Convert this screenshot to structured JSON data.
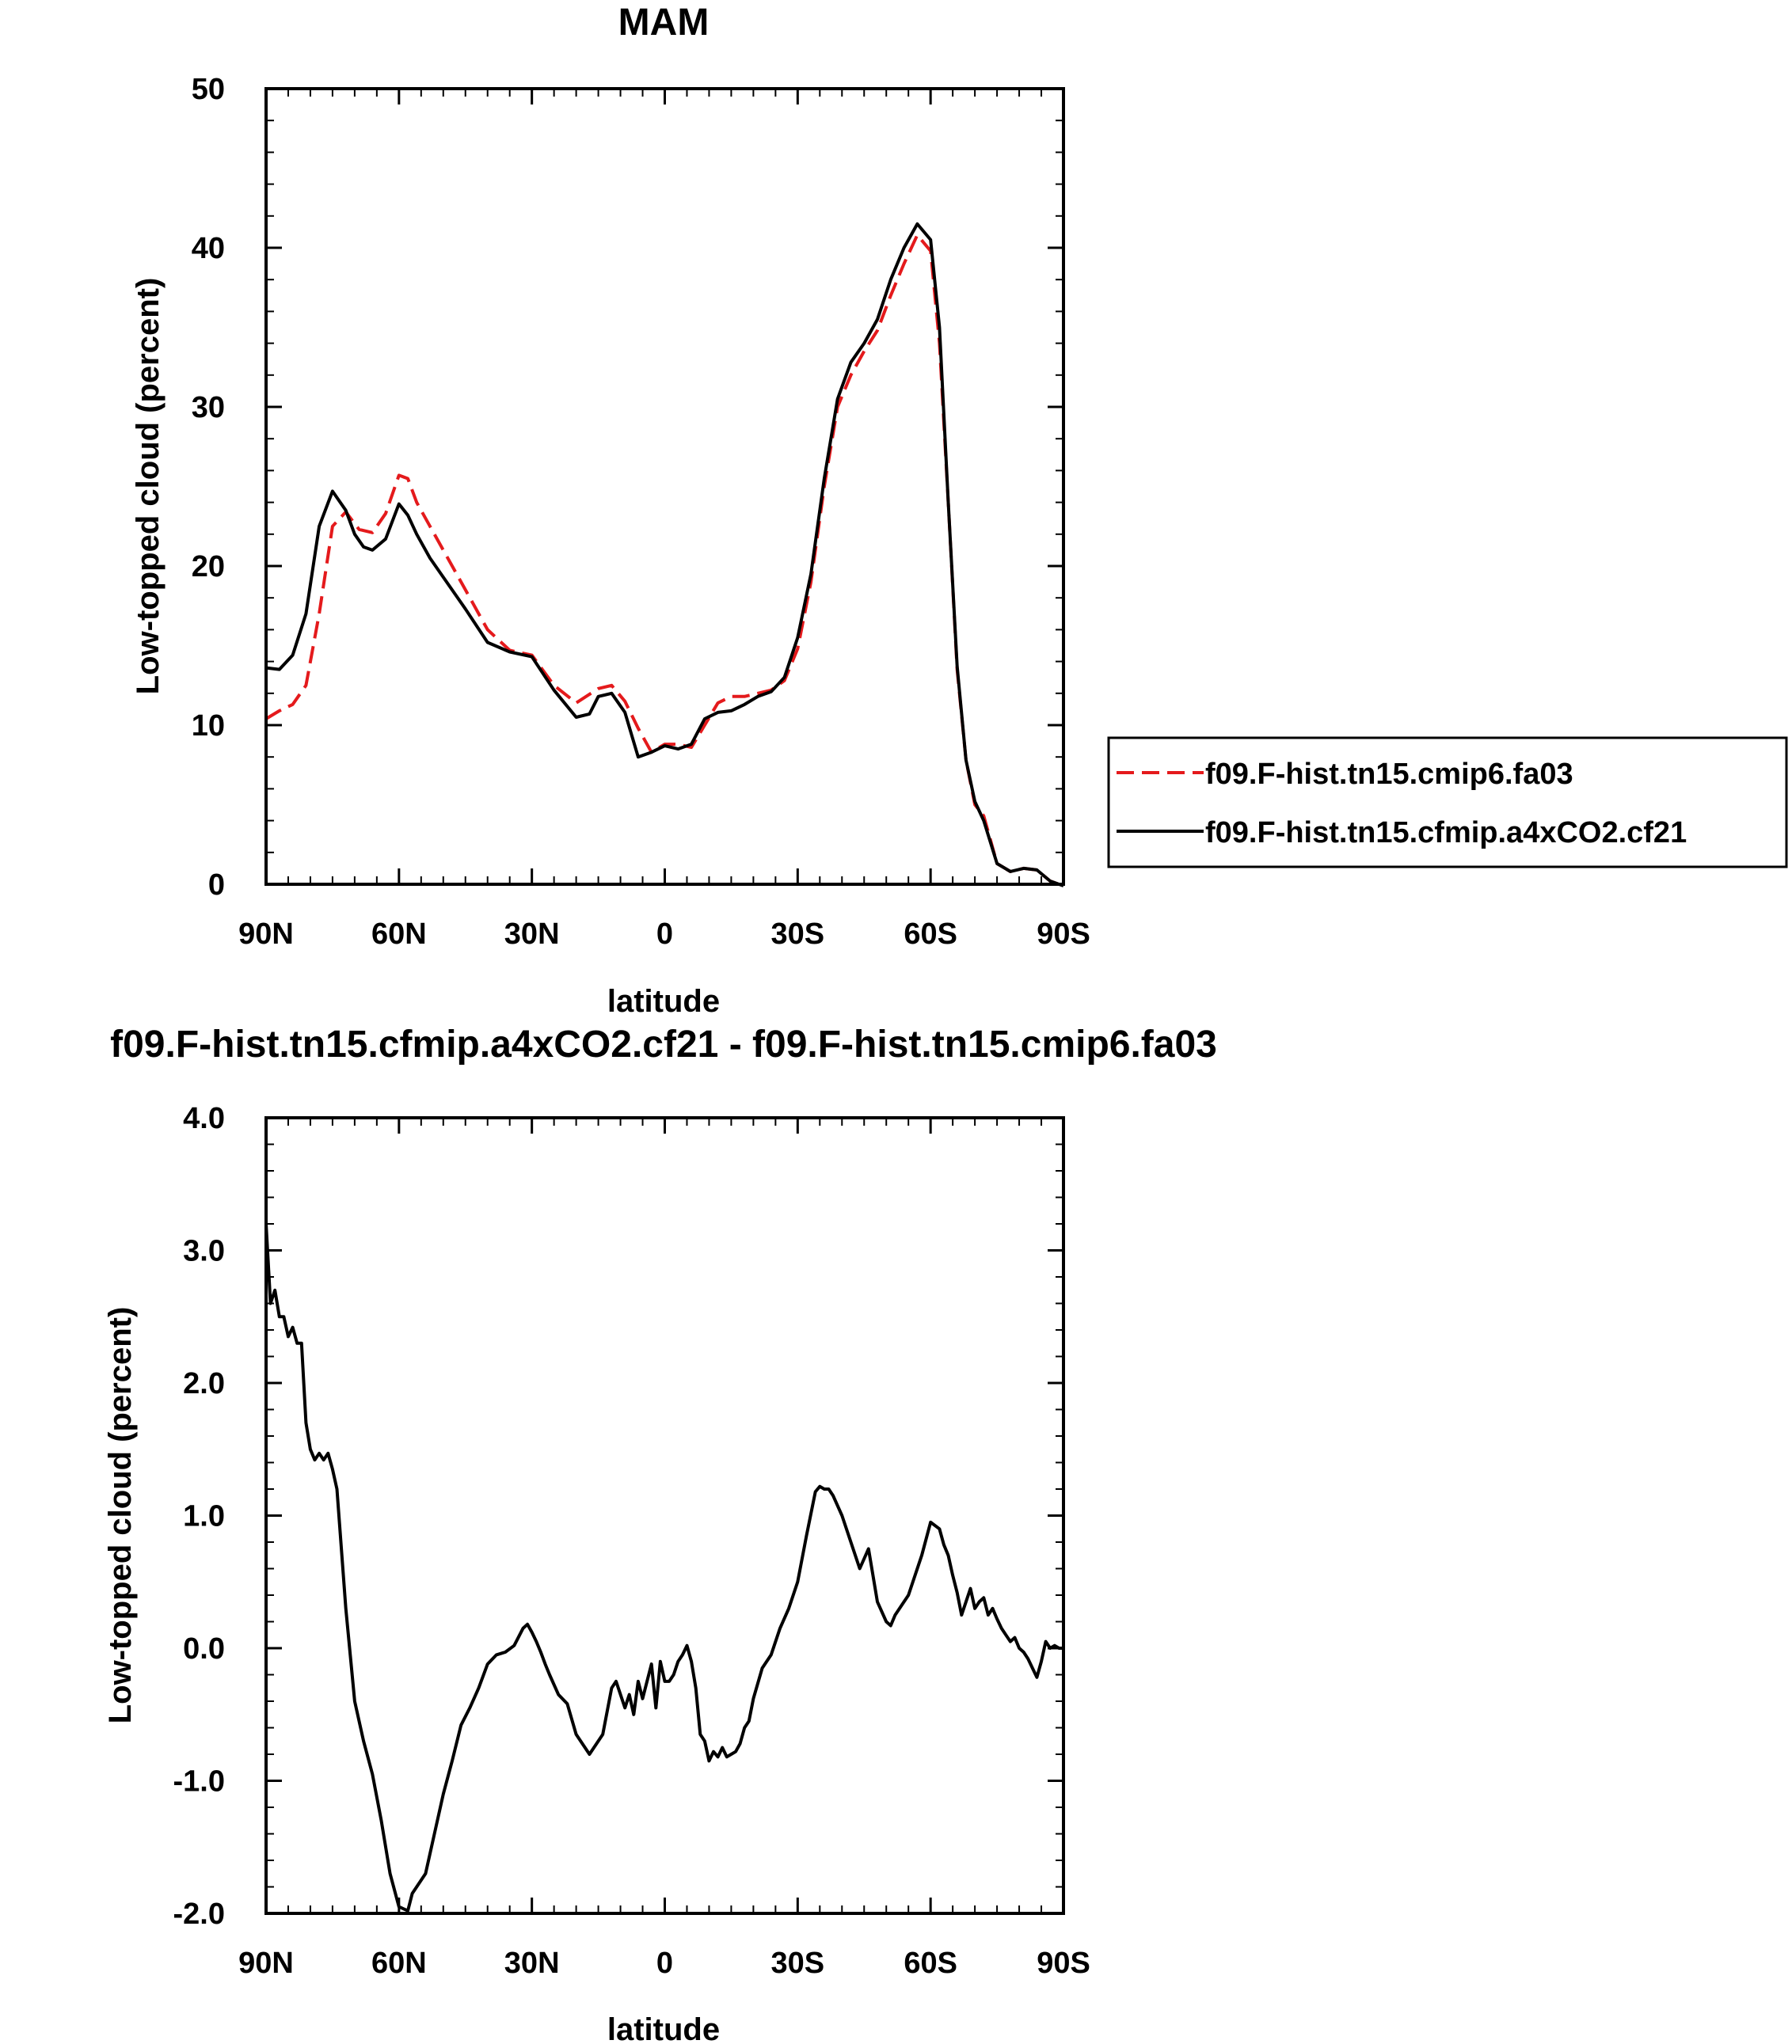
{
  "chart_data": [
    {
      "type": "line",
      "title": "MAM",
      "xlabel": "latitude",
      "ylabel": "Low-topped cloud (percent)",
      "xlim": [
        90,
        -90
      ],
      "ylim": [
        0,
        50
      ],
      "x_ticks": [
        90,
        60,
        30,
        0,
        -30,
        -60,
        -90
      ],
      "x_tick_labels": [
        "90N",
        "60N",
        "30N",
        "0",
        "30S",
        "60S",
        "90S"
      ],
      "y_ticks": [
        0,
        10,
        20,
        30,
        40,
        50
      ],
      "y_tick_labels": [
        "0",
        "10",
        "20",
        "30",
        "40",
        "50"
      ],
      "grid": false,
      "legend_placement": "outside-right",
      "series": [
        {
          "name": "f09.F-hist.tn15.cmip6.fa03",
          "color": "#e41a1c",
          "dash": "dashed",
          "x": [
            90,
            87,
            84,
            81,
            78,
            75,
            72,
            69,
            66,
            63,
            60,
            58,
            56,
            53,
            50,
            45,
            40,
            35,
            30,
            25,
            20,
            15,
            12,
            9,
            6,
            3,
            0,
            -3,
            -6,
            -9,
            -12,
            -15,
            -18,
            -21,
            -24,
            -27,
            -30,
            -33,
            -36,
            -39,
            -42,
            -45,
            -48,
            -51,
            -54,
            -57,
            -60,
            -62,
            -64,
            -66,
            -68,
            -70,
            -72,
            -75,
            -78,
            -81,
            -84,
            -87,
            -90
          ],
          "y": [
            10.4,
            10.9,
            11.3,
            12.5,
            17,
            22.5,
            23.4,
            22.3,
            22.1,
            23.3,
            25.7,
            25.5,
            24,
            22.5,
            21,
            18.5,
            16,
            14.7,
            14.4,
            12.5,
            11.4,
            12.3,
            12.5,
            11.5,
            9.8,
            8.3,
            8.8,
            8.8,
            8.6,
            10,
            11.4,
            11.8,
            11.8,
            12,
            12.2,
            12.8,
            14.8,
            19,
            25,
            30,
            32,
            33.5,
            34.8,
            37,
            39,
            40.8,
            39.8,
            34,
            24,
            13.5,
            7.8,
            5,
            4.3,
            1.3,
            0.8,
            1,
            0.9,
            0.2,
            -0.1
          ]
        },
        {
          "name": "f09.F-hist.tn15.cfmip.a4xCO2.cf21",
          "color": "#000000",
          "dash": "solid",
          "x": [
            90,
            87,
            84,
            81,
            78,
            75,
            72,
            70,
            68,
            66,
            63,
            60,
            58,
            56,
            53,
            50,
            45,
            40,
            35,
            30,
            25,
            20,
            17,
            15,
            12,
            9,
            6,
            3,
            0,
            -3,
            -6,
            -9,
            -12,
            -15,
            -18,
            -21,
            -24,
            -27,
            -30,
            -33,
            -36,
            -39,
            -42,
            -45,
            -48,
            -51,
            -54,
            -57,
            -60,
            -62,
            -64,
            -66,
            -68,
            -70,
            -72,
            -75,
            -78,
            -81,
            -84,
            -87,
            -90
          ],
          "y": [
            13.6,
            13.5,
            14.4,
            17,
            22.5,
            24.7,
            23.5,
            22,
            21.2,
            21,
            21.7,
            23.9,
            23.2,
            22,
            20.5,
            19.3,
            17.3,
            15.2,
            14.6,
            14.3,
            12.2,
            10.5,
            10.7,
            11.8,
            12,
            10.8,
            8,
            8.3,
            8.7,
            8.5,
            8.8,
            10.4,
            10.8,
            10.9,
            11.3,
            11.8,
            12.1,
            13,
            15.5,
            19.5,
            25.5,
            30.5,
            32.8,
            34,
            35.5,
            38,
            40,
            41.5,
            40.5,
            35,
            24,
            13.7,
            7.8,
            5.2,
            4,
            1.3,
            0.8,
            1,
            0.9,
            0.2,
            -0.1
          ]
        }
      ]
    },
    {
      "type": "line",
      "title": "f09.F-hist.tn15.cfmip.a4xCO2.cf21 - f09.F-hist.tn15.cmip6.fa03",
      "xlabel": "latitude",
      "ylabel": "Low-topped cloud (percent)",
      "xlim": [
        90,
        -90
      ],
      "ylim": [
        -2.0,
        4.0
      ],
      "x_ticks": [
        90,
        60,
        30,
        0,
        -30,
        -60,
        -90
      ],
      "x_tick_labels": [
        "90N",
        "60N",
        "30N",
        "0",
        "30S",
        "60S",
        "90S"
      ],
      "y_ticks": [
        -2,
        -1,
        0,
        1,
        2,
        3,
        4
      ],
      "y_tick_labels": [
        "-2.0",
        "-1.0",
        "0.0",
        "1.0",
        "2.0",
        "3.0",
        "4.0"
      ],
      "grid": false,
      "series": [
        {
          "color": "#000000",
          "dash": "solid",
          "x": [
            90,
            89,
            88,
            87,
            86,
            85,
            84,
            83,
            82,
            81,
            80,
            79,
            78,
            77,
            76,
            75,
            74,
            72,
            70,
            68,
            66,
            64,
            62,
            60,
            58,
            57,
            56,
            55,
            54,
            52,
            50,
            48,
            46,
            44,
            42,
            40,
            38,
            36,
            34,
            32,
            31,
            30,
            29,
            28,
            27,
            26,
            24,
            22,
            20,
            18,
            17,
            16,
            14,
            12,
            11,
            10,
            9,
            8,
            7,
            6,
            5,
            4,
            3,
            2,
            1,
            0,
            -1,
            -2,
            -3,
            -4,
            -5,
            -6,
            -7,
            -8,
            -9,
            -10,
            -11,
            -12,
            -13,
            -14,
            -15,
            -16,
            -17,
            -18,
            -19,
            -20,
            -22,
            -24,
            -26,
            -28,
            -30,
            -32,
            -34,
            -35,
            -36,
            -37,
            -38,
            -40,
            -42,
            -44,
            -46,
            -48,
            -50,
            -51,
            -52,
            -53,
            -54,
            -55,
            -56,
            -58,
            -60,
            -62,
            -63,
            -64,
            -65,
            -66,
            -67,
            -68,
            -69,
            -70,
            -71,
            -72,
            -73,
            -74,
            -75,
            -76,
            -77,
            -78,
            -79,
            -80,
            -81,
            -82,
            -83,
            -84,
            -85,
            -86,
            -87,
            -88,
            -89,
            -90
          ],
          "y": [
            3.2,
            2.6,
            2.7,
            2.5,
            2.5,
            2.35,
            2.42,
            2.3,
            2.3,
            1.7,
            1.5,
            1.42,
            1.47,
            1.42,
            1.47,
            1.35,
            1.2,
            0.3,
            -0.4,
            -0.7,
            -0.95,
            -1.3,
            -1.7,
            -1.95,
            -1.98,
            -1.85,
            -1.8,
            -1.75,
            -1.7,
            -1.4,
            -1.1,
            -0.85,
            -0.58,
            -0.45,
            -0.3,
            -0.12,
            -0.05,
            -0.03,
            0.02,
            0.15,
            0.18,
            0.12,
            0.05,
            -0.03,
            -0.12,
            -0.2,
            -0.35,
            -0.42,
            -0.65,
            -0.75,
            -0.8,
            -0.75,
            -0.65,
            -0.3,
            -0.25,
            -0.35,
            -0.45,
            -0.35,
            -0.5,
            -0.25,
            -0.38,
            -0.25,
            -0.12,
            -0.45,
            -0.1,
            -0.25,
            -0.25,
            -0.2,
            -0.1,
            -0.05,
            0.02,
            -0.1,
            -0.3,
            -0.65,
            -0.7,
            -0.85,
            -0.78,
            -0.82,
            -0.75,
            -0.82,
            -0.8,
            -0.78,
            -0.72,
            -0.6,
            -0.55,
            -0.38,
            -0.15,
            -0.05,
            0.15,
            0.3,
            0.5,
            0.85,
            1.18,
            1.22,
            1.2,
            1.2,
            1.15,
            1.0,
            0.8,
            0.6,
            0.75,
            0.35,
            0.2,
            0.17,
            0.25,
            0.3,
            0.35,
            0.4,
            0.5,
            0.7,
            0.95,
            0.9,
            0.78,
            0.7,
            0.55,
            0.42,
            0.25,
            0.35,
            0.45,
            0.3,
            0.35,
            0.38,
            0.25,
            0.3,
            0.22,
            0.15,
            0.1,
            0.05,
            0.08,
            0.0,
            -0.03,
            -0.08,
            -0.15,
            -0.22,
            -0.1,
            0.05,
            0.0,
            0.02,
            0.0,
            0.0
          ]
        }
      ]
    }
  ]
}
